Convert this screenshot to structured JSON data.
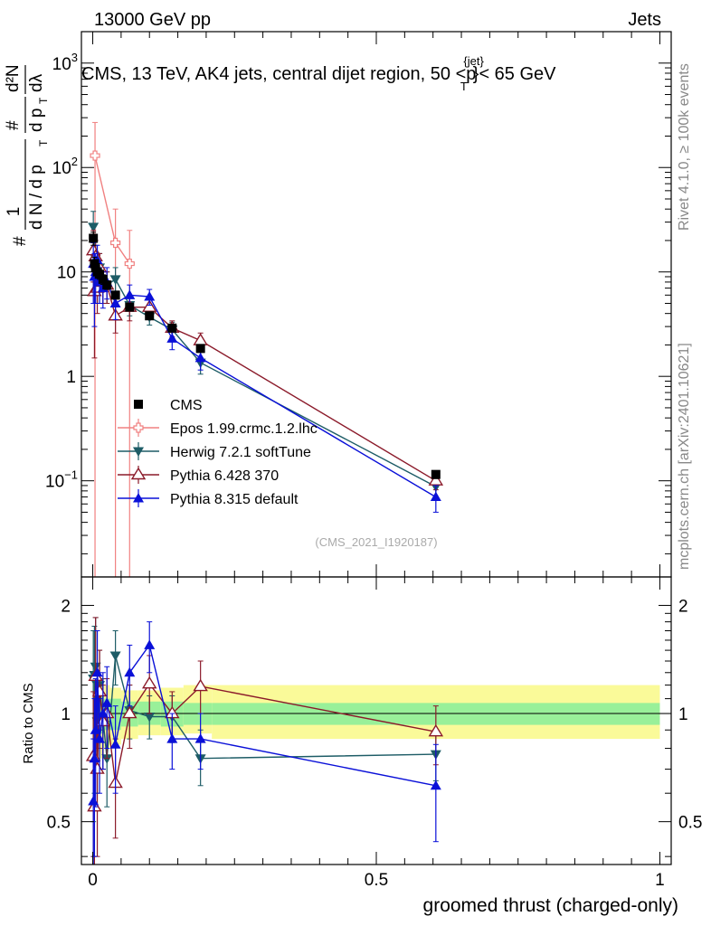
{
  "header": {
    "left": "13000 GeV pp",
    "right": "Jets",
    "title": "CMS, 13 TeV, AK4 jets, central dijet region, 50 <p",
    "title_sup": "{jet}",
    "title_sub": "T",
    "title_end": "}< 65 GeV",
    "rivet": "Rivet 4.1.0, ≥ 100k events",
    "site": "mcplots.cern.ch [arXiv:2401.10621]",
    "analysis": "(CMS_2021_I1920187)"
  },
  "ylabel": {
    "main_hash": "#",
    "main_one": "1",
    "main_den": "d N / d p",
    "main_den_sub": "T",
    "main_hash2": "#",
    "main_num2": "d p",
    "main_num2_sub": "T",
    "main_d2n": "d²N",
    "main_dl": "dλ",
    "ratio": "Ratio to CMS"
  },
  "xlabel": "groomed thrust (charged-only)",
  "colors": {
    "cms": "#000000",
    "epos": "#f08080",
    "herwig": "#1d5c66",
    "pythia6": "#8b1a2a",
    "pythia8": "#0a10d8",
    "band_inner": "#99f099",
    "band_outer": "#fafa99"
  },
  "chart_data": [
    {
      "type": "scatter",
      "panel": "main",
      "yscale": "log",
      "xlim": [
        -0.02,
        1.02
      ],
      "ylim": [
        0.012,
        2000
      ],
      "x_ticks": [
        0,
        0.5,
        1
      ],
      "y_ticks": [
        {
          "value": 0.1,
          "label": "10",
          "exp": "−1"
        },
        {
          "value": 1,
          "label": "1",
          "exp": ""
        },
        {
          "value": 10,
          "label": "10",
          "exp": ""
        },
        {
          "value": 100,
          "label": "10",
          "exp": "2"
        },
        {
          "value": 1000,
          "label": "10",
          "exp": "3"
        }
      ],
      "legend_position": "center-left",
      "series": [
        {
          "name": "CMS",
          "key": "cms",
          "marker": "square",
          "x": [
            0.001,
            0.003,
            0.005,
            0.008,
            0.012,
            0.018,
            0.025,
            0.04,
            0.065,
            0.1,
            0.14,
            0.19,
            0.605
          ],
          "y": [
            21,
            12,
            11,
            10,
            9.5,
            8.5,
            7.5,
            6,
            4.6,
            3.8,
            2.9,
            1.85,
            0.115
          ],
          "yerr": [
            3,
            1.8,
            1.5,
            1.2,
            1,
            0.9,
            0.7,
            0.5,
            0.3,
            0.25,
            0.2,
            0.12,
            0.01
          ]
        },
        {
          "name": "Epos 1.99.crmc.1.2.lhc",
          "key": "epos",
          "marker": "open-cross",
          "x": [
            0.004,
            0.04,
            0.065
          ],
          "y": [
            130,
            19,
            12
          ],
          "ylow": [
            0.001,
            0.001,
            0.001
          ],
          "yhigh": [
            270,
            40,
            25
          ]
        },
        {
          "name": "Herwig 7.2.1 softTune",
          "key": "herwig",
          "marker": "down-triangle",
          "x": [
            0.001,
            0.003,
            0.005,
            0.008,
            0.012,
            0.018,
            0.025,
            0.04,
            0.065,
            0.1,
            0.14,
            0.19,
            0.605
          ],
          "y": [
            27,
            14,
            12,
            9,
            11,
            8,
            7.5,
            8.5,
            4.8,
            3.7,
            2.8,
            1.35,
            0.088
          ],
          "ylow": [
            15,
            8,
            6,
            5,
            7,
            5,
            5,
            6.5,
            3.8,
            3.1,
            2.3,
            1.05,
            0.07
          ],
          "yhigh": [
            38,
            20,
            18,
            13,
            15,
            11,
            10,
            11,
            5.8,
            4.4,
            3.3,
            1.7,
            0.105
          ]
        },
        {
          "name": "Pythia 6.428 370",
          "key": "pythia6",
          "marker": "open-triangle",
          "x": [
            0.001,
            0.003,
            0.005,
            0.008,
            0.012,
            0.018,
            0.025,
            0.04,
            0.065,
            0.1,
            0.14,
            0.19,
            0.605
          ],
          "y": [
            16,
            6.5,
            14,
            7,
            11,
            8,
            7.5,
            3.8,
            4.6,
            4.6,
            2.9,
            2.2,
            0.1
          ],
          "ylow": [
            8,
            1.5,
            8,
            4,
            7,
            5,
            5,
            2.6,
            3.4,
            3.8,
            2.4,
            1.8,
            0.082
          ],
          "yhigh": [
            25,
            11,
            20,
            11,
            15,
            11,
            10,
            5,
            5.8,
            5.4,
            3.4,
            2.6,
            0.118
          ]
        },
        {
          "name": "Pythia 8.315 default",
          "key": "pythia8",
          "marker": "triangle",
          "x": [
            0.001,
            0.003,
            0.005,
            0.008,
            0.012,
            0.018,
            0.025,
            0.04,
            0.065,
            0.1,
            0.14,
            0.19,
            0.605
          ],
          "y": [
            12,
            9,
            10,
            13,
            8,
            7,
            8,
            5,
            6,
            5.8,
            2.3,
            1.5,
            0.07
          ],
          "ylow": [
            5,
            3,
            5,
            8,
            5,
            4.5,
            5.5,
            3.5,
            4.5,
            4.8,
            1.8,
            1.15,
            0.05
          ],
          "yhigh": [
            19,
            15,
            15,
            18,
            11,
            10,
            11,
            6.5,
            7.5,
            6.8,
            2.8,
            1.85,
            0.09
          ]
        }
      ]
    },
    {
      "type": "scatter",
      "panel": "ratio",
      "yscale": "log",
      "xlim": [
        -0.02,
        1.02
      ],
      "ylim": [
        0.38,
        2.4
      ],
      "x_ticks": [
        {
          "value": 0,
          "label": "0"
        },
        {
          "value": 0.5,
          "label": "0.5"
        },
        {
          "value": 1,
          "label": "1"
        }
      ],
      "y_ticks": [
        {
          "value": 0.5,
          "label": "0.5"
        },
        {
          "value": 1,
          "label": "1"
        },
        {
          "value": 2,
          "label": "2"
        }
      ],
      "band_edges": [
        0,
        0.01,
        0.02,
        0.03,
        0.05,
        0.08,
        0.12,
        0.16,
        0.21,
        1.0
      ],
      "band_inner": [
        [
          0.85,
          1.15
        ],
        [
          0.88,
          1.12
        ],
        [
          0.9,
          1.1
        ],
        [
          0.9,
          1.1
        ],
        [
          0.92,
          1.08
        ],
        [
          0.93,
          1.08
        ],
        [
          0.92,
          1.08
        ],
        [
          0.93,
          1.07
        ],
        [
          0.93,
          1.07
        ]
      ],
      "band_outer": [
        [
          0.7,
          1.3
        ],
        [
          0.75,
          1.25
        ],
        [
          0.8,
          1.2
        ],
        [
          0.82,
          1.18
        ],
        [
          0.85,
          1.16
        ],
        [
          0.87,
          1.16
        ],
        [
          0.87,
          1.18
        ],
        [
          0.88,
          1.2
        ],
        [
          0.85,
          1.2
        ]
      ],
      "series": [
        {
          "name": "Herwig 7.2.1 softTune",
          "key": "herwig",
          "marker": "down-triangle",
          "x": [
            0.001,
            0.003,
            0.005,
            0.008,
            0.012,
            0.018,
            0.025,
            0.04,
            0.065,
            0.1,
            0.14,
            0.19,
            0.605
          ],
          "y": [
            1.25,
            1.28,
            1.35,
            0.95,
            1.2,
            0.97,
            0.75,
            1.45,
            1.02,
            0.98,
            0.98,
            0.75,
            0.77
          ],
          "ylow": [
            0.5,
            0.6,
            0.7,
            0.6,
            0.9,
            0.7,
            0.55,
            1.2,
            0.85,
            0.85,
            0.83,
            0.63,
            0.65
          ],
          "yhigh": [
            1.7,
            1.75,
            1.85,
            1.3,
            1.5,
            1.25,
            0.95,
            1.7,
            1.2,
            1.12,
            1.12,
            0.9,
            0.9
          ]
        },
        {
          "name": "Pythia 6.428 370",
          "key": "pythia6",
          "marker": "open-triangle",
          "x": [
            0.001,
            0.003,
            0.005,
            0.008,
            0.012,
            0.018,
            0.025,
            0.04,
            0.065,
            0.1,
            0.14,
            0.19,
            0.605
          ],
          "y": [
            0.76,
            0.55,
            1.27,
            0.7,
            1.15,
            0.95,
            1.0,
            0.64,
            1.0,
            1.21,
            1.0,
            1.19,
            0.89
          ],
          "ylow": [
            0.4,
            0.3,
            0.8,
            0.4,
            0.8,
            0.7,
            0.75,
            0.45,
            0.8,
            1.0,
            0.85,
            1.0,
            0.72
          ],
          "yhigh": [
            1.15,
            0.85,
            1.85,
            1.0,
            1.5,
            1.2,
            1.25,
            0.85,
            1.2,
            1.45,
            1.15,
            1.4,
            1.05
          ]
        },
        {
          "name": "Pythia 8.315 default",
          "key": "pythia8",
          "marker": "triangle",
          "x": [
            0.001,
            0.003,
            0.005,
            0.008,
            0.012,
            0.018,
            0.025,
            0.04,
            0.065,
            0.1,
            0.14,
            0.19,
            0.605
          ],
          "y": [
            0.57,
            0.75,
            0.9,
            1.3,
            0.85,
            1.0,
            1.07,
            0.82,
            1.3,
            1.55,
            0.85,
            0.85,
            0.63
          ],
          "ylow": [
            0.3,
            0.4,
            0.55,
            0.9,
            0.6,
            0.7,
            0.8,
            0.6,
            1.05,
            1.3,
            0.7,
            0.7,
            0.44
          ],
          "yhigh": [
            0.85,
            1.1,
            1.25,
            1.7,
            1.1,
            1.3,
            1.35,
            1.05,
            1.55,
            1.8,
            1.0,
            1.0,
            0.82
          ]
        }
      ]
    }
  ]
}
